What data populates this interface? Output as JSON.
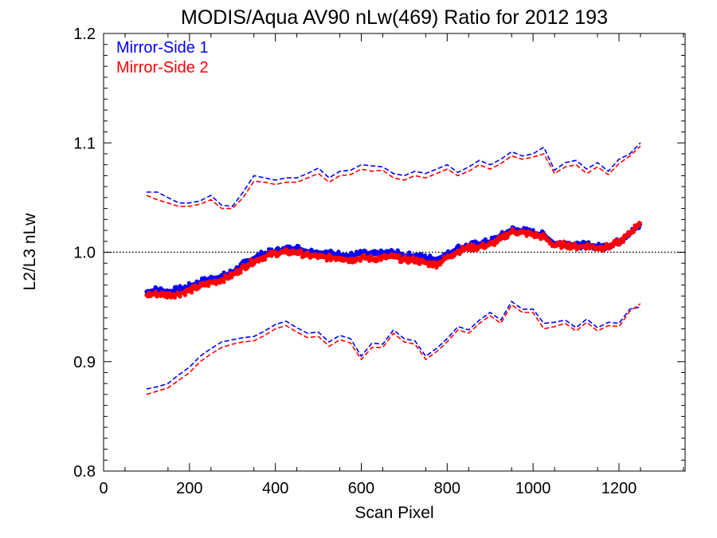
{
  "chart_data": {
    "type": "line",
    "title": "MODIS/Aqua AV90 nLw(469) Ratio for 2012 193",
    "xlabel": "Scan Pixel",
    "ylabel": "L2/L3 nLw",
    "xlim": [
      0,
      1354
    ],
    "ylim": [
      0.8,
      1.2
    ],
    "x_ticks": [
      0,
      200,
      400,
      600,
      800,
      1000,
      1200
    ],
    "x_tick_labels": [
      "0",
      "200",
      "400",
      "600",
      "800",
      "1000",
      "1200"
    ],
    "y_ticks": [
      0.8,
      0.9,
      1.0,
      1.1,
      1.2
    ],
    "y_tick_labels": [
      "0.8",
      "0.9",
      "1.0",
      "1.1",
      "1.2"
    ],
    "reference_line": {
      "y": 1.0,
      "style": "dotted",
      "color": "#000000"
    },
    "legend_position": "top-left",
    "grid": false,
    "x": [
      100,
      125,
      150,
      175,
      200,
      225,
      250,
      275,
      300,
      325,
      350,
      375,
      400,
      425,
      450,
      475,
      500,
      525,
      550,
      575,
      600,
      625,
      650,
      675,
      700,
      725,
      750,
      775,
      800,
      825,
      850,
      875,
      900,
      925,
      950,
      975,
      1000,
      1025,
      1050,
      1075,
      1100,
      1125,
      1150,
      1175,
      1200,
      1225,
      1250
    ],
    "series": [
      {
        "name": "Mirror-Side 1",
        "color": "#0000ff",
        "mean": [
          0.964,
          0.966,
          0.964,
          0.966,
          0.969,
          0.973,
          0.976,
          0.978,
          0.982,
          0.989,
          0.995,
          0.999,
          1.001,
          1.003,
          1.004,
          1.001,
          1.0,
          0.999,
          0.998,
          0.997,
          0.999,
          0.998,
          0.999,
          1.0,
          0.997,
          0.997,
          0.995,
          0.994,
          0.998,
          1.004,
          1.006,
          1.008,
          1.01,
          1.015,
          1.021,
          1.02,
          1.018,
          1.016,
          1.008,
          1.009,
          1.006,
          1.007,
          1.005,
          1.006,
          1.01,
          1.018,
          1.024
        ],
        "upper": [
          1.055,
          1.055,
          1.05,
          1.045,
          1.045,
          1.047,
          1.052,
          1.043,
          1.042,
          1.055,
          1.07,
          1.068,
          1.066,
          1.068,
          1.068,
          1.072,
          1.077,
          1.068,
          1.074,
          1.075,
          1.08,
          1.079,
          1.078,
          1.072,
          1.07,
          1.074,
          1.072,
          1.076,
          1.08,
          1.073,
          1.078,
          1.084,
          1.08,
          1.085,
          1.092,
          1.088,
          1.09,
          1.096,
          1.075,
          1.082,
          1.084,
          1.076,
          1.082,
          1.074,
          1.085,
          1.09,
          1.1
        ],
        "lower": [
          0.875,
          0.877,
          0.88,
          0.888,
          0.895,
          0.905,
          0.912,
          0.918,
          0.92,
          0.922,
          0.923,
          0.928,
          0.934,
          0.937,
          0.931,
          0.926,
          0.927,
          0.918,
          0.924,
          0.921,
          0.905,
          0.917,
          0.916,
          0.929,
          0.921,
          0.919,
          0.905,
          0.912,
          0.921,
          0.932,
          0.929,
          0.938,
          0.945,
          0.938,
          0.955,
          0.948,
          0.948,
          0.935,
          0.936,
          0.938,
          0.931,
          0.939,
          0.931,
          0.936,
          0.935,
          0.948,
          0.95
        ]
      },
      {
        "name": "Mirror-Side 2",
        "color": "#ff0000",
        "mean": [
          0.961,
          0.962,
          0.961,
          0.962,
          0.965,
          0.969,
          0.972,
          0.975,
          0.979,
          0.986,
          0.992,
          0.996,
          0.999,
          1.0,
          1.0,
          0.997,
          0.996,
          0.995,
          0.995,
          0.993,
          0.995,
          0.994,
          0.995,
          0.996,
          0.993,
          0.993,
          0.99,
          0.989,
          0.995,
          1.001,
          1.004,
          1.005,
          1.007,
          1.012,
          1.019,
          1.018,
          1.016,
          1.014,
          1.006,
          1.007,
          1.005,
          1.006,
          1.004,
          1.005,
          1.009,
          1.017,
          1.028
        ],
        "upper": [
          1.052,
          1.048,
          1.045,
          1.042,
          1.042,
          1.044,
          1.048,
          1.04,
          1.04,
          1.05,
          1.065,
          1.064,
          1.062,
          1.064,
          1.064,
          1.068,
          1.072,
          1.064,
          1.07,
          1.071,
          1.076,
          1.074,
          1.075,
          1.068,
          1.066,
          1.07,
          1.068,
          1.072,
          1.076,
          1.07,
          1.074,
          1.08,
          1.076,
          1.081,
          1.088,
          1.085,
          1.087,
          1.09,
          1.072,
          1.078,
          1.08,
          1.072,
          1.078,
          1.071,
          1.081,
          1.088,
          1.097
        ],
        "lower": [
          0.87,
          0.873,
          0.876,
          0.883,
          0.89,
          0.9,
          0.907,
          0.913,
          0.916,
          0.918,
          0.919,
          0.924,
          0.93,
          0.933,
          0.927,
          0.922,
          0.923,
          0.914,
          0.92,
          0.917,
          0.902,
          0.913,
          0.913,
          0.926,
          0.918,
          0.916,
          0.902,
          0.909,
          0.918,
          0.929,
          0.926,
          0.935,
          0.942,
          0.935,
          0.952,
          0.945,
          0.945,
          0.93,
          0.932,
          0.935,
          0.928,
          0.936,
          0.928,
          0.933,
          0.932,
          0.946,
          0.953
        ]
      }
    ]
  }
}
